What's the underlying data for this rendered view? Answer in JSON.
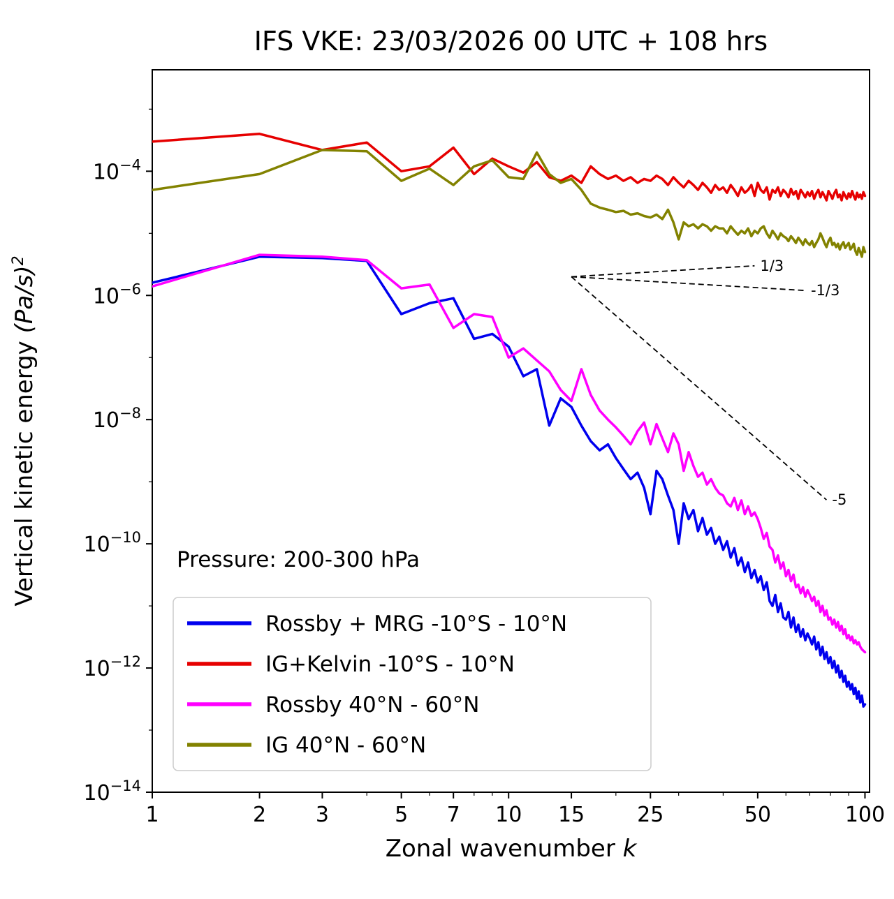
{
  "chart_data": {
    "type": "line",
    "title": "IFS VKE: 23/03/2026 00 UTC + 108 hrs",
    "xlabel": "Zonal wavenumber k",
    "ylabel": "Vertical kinetic energy (Pa/s)²",
    "xlabel_rich": [
      {
        "t": "Zonal wavenumber ",
        "style": "normal"
      },
      {
        "t": "k",
        "style": "italic"
      }
    ],
    "ylabel_rich": [
      {
        "t": "Vertical kinetic energy ",
        "style": "normal"
      },
      {
        "t": "(Pa/s)",
        "style": "italic"
      },
      {
        "t": "2",
        "style": "italic",
        "super": true
      }
    ],
    "xscale": "log",
    "yscale": "log",
    "xlim": [
      1,
      103
    ],
    "ylim": [
      1e-14,
      0.0043
    ],
    "grid": false,
    "legend_position": "lower left",
    "xticks": [
      1,
      2,
      3,
      5,
      7,
      10,
      15,
      25,
      50,
      100
    ],
    "xticks_minor": [
      4,
      6,
      8,
      9,
      20,
      30,
      40,
      60,
      70,
      80,
      90
    ],
    "yticks_exponents": [
      -4,
      -6,
      -8,
      -10,
      -12,
      -14
    ],
    "yticks_minor_exponents": [
      -3,
      -5,
      -7,
      -9,
      -11,
      -13
    ],
    "pressure_label": "Pressure: 200-300 hPa",
    "guides": [
      {
        "label": "1/3",
        "x0": 15,
        "y0": 2e-06,
        "x1": 49,
        "y1": 3e-06
      },
      {
        "label": "-1/3",
        "x0": 15,
        "y0": 2e-06,
        "x1": 68,
        "y1": 1.2e-06
      },
      {
        "label": "-5",
        "x0": 15,
        "y0": 2e-06,
        "x1": 78,
        "y1": 5.1e-10
      }
    ],
    "x": [
      1,
      2,
      3,
      4,
      5,
      6,
      7,
      8,
      9,
      10,
      11,
      12,
      13,
      14,
      15,
      16,
      17,
      18,
      19,
      20,
      21,
      22,
      23,
      24,
      25,
      26,
      27,
      28,
      29,
      30,
      31,
      32,
      33,
      34,
      35,
      36,
      37,
      38,
      39,
      40,
      41,
      42,
      43,
      44,
      45,
      46,
      47,
      48,
      49,
      50,
      51,
      52,
      53,
      54,
      55,
      56,
      57,
      58,
      59,
      60,
      61,
      62,
      63,
      64,
      65,
      66,
      67,
      68,
      69,
      70,
      71,
      72,
      73,
      74,
      75,
      76,
      77,
      78,
      79,
      80,
      81,
      82,
      83,
      84,
      85,
      86,
      87,
      88,
      89,
      90,
      91,
      92,
      93,
      94,
      95,
      96,
      97,
      98,
      99,
      100
    ],
    "series": [
      {
        "name": "Rossby + MRG -10°S - 10°N",
        "color": "#0000ee",
        "values": [
          1.6e-06,
          4.2e-06,
          4e-06,
          3.6e-06,
          5e-07,
          7.5e-07,
          9e-07,
          2e-07,
          2.4e-07,
          1.5e-07,
          5e-08,
          6.5e-08,
          8e-09,
          2.2e-08,
          1.6e-08,
          8e-09,
          4.5e-09,
          3.2e-09,
          4e-09,
          2.4e-09,
          1.6e-09,
          1.1e-09,
          1.4e-09,
          8e-10,
          3e-10,
          1.5e-09,
          1.1e-09,
          6e-10,
          3.5e-10,
          1e-10,
          4.5e-10,
          2.5e-10,
          3.5e-10,
          1.6e-10,
          2.6e-10,
          1.4e-10,
          1.8e-10,
          1e-10,
          1.3e-10,
          8e-11,
          1.1e-10,
          6e-11,
          8.5e-11,
          4.5e-11,
          6e-11,
          3.5e-11,
          5e-11,
          2.8e-11,
          3.8e-11,
          2.4e-11,
          3e-11,
          1.8e-11,
          2.4e-11,
          1.2e-11,
          1e-11,
          1.5e-11,
          8e-12,
          1.1e-11,
          6.5e-12,
          6e-12,
          8e-12,
          4.5e-12,
          6.5e-12,
          3.8e-12,
          5e-12,
          3.2e-12,
          4.2e-12,
          2.8e-12,
          3.6e-12,
          3e-12,
          2.4e-12,
          3.2e-12,
          2e-12,
          2.6e-12,
          1.6e-12,
          2.2e-12,
          1.4e-12,
          1.8e-12,
          1.2e-12,
          1.5e-12,
          1e-12,
          1.3e-12,
          8.5e-13,
          1.1e-12,
          7e-13,
          9e-13,
          6e-13,
          7.5e-13,
          5e-13,
          6e-13,
          4.5e-13,
          5.5e-13,
          3.8e-13,
          4.8e-13,
          3.2e-13,
          4.2e-13,
          2.8e-13,
          3.6e-13,
          2.4e-13,
          2.6e-13
        ]
      },
      {
        "name": "IG+Kelvin -10°S - 10°N",
        "color": "#e60000",
        "values": [
          0.0003,
          0.0004,
          0.00022,
          0.00029,
          0.0001,
          0.00012,
          0.00024,
          9e-05,
          0.00016,
          0.00012,
          9.5e-05,
          0.00014,
          8e-05,
          7e-05,
          8.5e-05,
          6.5e-05,
          0.00012,
          9e-05,
          7.5e-05,
          8.5e-05,
          7e-05,
          8e-05,
          6.5e-05,
          7.5e-05,
          7e-05,
          8.5e-05,
          7.5e-05,
          6e-05,
          8e-05,
          6.5e-05,
          5.5e-05,
          7e-05,
          6e-05,
          5e-05,
          6.5e-05,
          5.5e-05,
          4.5e-05,
          6e-05,
          5e-05,
          5.5e-05,
          4.5e-05,
          6e-05,
          5e-05,
          4e-05,
          5.5e-05,
          4.5e-05,
          5e-05,
          6e-05,
          4e-05,
          6.5e-05,
          5e-05,
          4.5e-05,
          5.5e-05,
          3.5e-05,
          5e-05,
          4.5e-05,
          5.5e-05,
          4e-05,
          5e-05,
          4.5e-05,
          3.8e-05,
          5.2e-05,
          4.2e-05,
          4.8e-05,
          3.6e-05,
          5e-05,
          4.4e-05,
          3.8e-05,
          4.6e-05,
          4e-05,
          4.8e-05,
          3.6e-05,
          4.4e-05,
          5e-05,
          3.8e-05,
          4.6e-05,
          4e-05,
          3.4e-05,
          4.8e-05,
          4.2e-05,
          3.6e-05,
          4.4e-05,
          5e-05,
          3.8e-05,
          4.2e-05,
          3.4e-05,
          4.6e-05,
          4e-05,
          3.6e-05,
          4.4e-05,
          3.8e-05,
          4.8e-05,
          4e-05,
          3.5e-05,
          4.5e-05,
          3.8e-05,
          4.2e-05,
          3.6e-05,
          4.6e-05,
          4e-05
        ]
      },
      {
        "name": "Rossby 40°N - 60°N",
        "color": "#ff00ff",
        "values": [
          1.4e-06,
          4.5e-06,
          4.2e-06,
          3.7e-06,
          1.3e-06,
          1.5e-06,
          3e-07,
          5e-07,
          4.5e-07,
          1e-07,
          1.4e-07,
          9e-08,
          6e-08,
          3e-08,
          2e-08,
          6.5e-08,
          2.5e-08,
          1.4e-08,
          1e-08,
          7.5e-09,
          5.5e-09,
          4e-09,
          6.5e-09,
          9e-09,
          4e-09,
          8.5e-09,
          5e-09,
          3e-09,
          6e-09,
          4e-09,
          1.5e-09,
          3e-09,
          1.8e-09,
          1.2e-09,
          1.4e-09,
          9e-10,
          1.1e-09,
          8e-10,
          6.5e-10,
          6e-10,
          4.5e-10,
          4e-10,
          5.5e-10,
          3.5e-10,
          5e-10,
          3e-10,
          4e-10,
          2.8e-10,
          3.2e-10,
          2.5e-10,
          1.8e-10,
          1.2e-10,
          1.5e-10,
          9e-11,
          8e-11,
          5e-11,
          6.5e-11,
          4e-11,
          5e-11,
          3e-11,
          3.8e-11,
          2.5e-11,
          3.2e-11,
          2e-11,
          2.2e-11,
          1.6e-11,
          2e-11,
          1.4e-11,
          1.8e-11,
          1.5e-11,
          1.2e-11,
          1.4e-11,
          1e-11,
          1.2e-11,
          8e-12,
          1e-11,
          7e-12,
          8.5e-12,
          6e-12,
          6.5e-12,
          5e-12,
          6e-12,
          4.5e-12,
          5.5e-12,
          4e-12,
          4.8e-12,
          3.5e-12,
          4.2e-12,
          3e-12,
          3.4e-12,
          2.8e-12,
          3.2e-12,
          2.5e-12,
          2.8e-12,
          2.4e-12,
          2.6e-12,
          2.2e-12,
          2e-12,
          1.9e-12,
          1.8e-12
        ]
      },
      {
        "name": "IG 40°N - 60°N",
        "color": "#828200",
        "values": [
          5e-05,
          9e-05,
          0.00022,
          0.00021,
          7e-05,
          0.00011,
          6e-05,
          0.00012,
          0.00015,
          8e-05,
          7.5e-05,
          0.0002,
          9e-05,
          6.5e-05,
          7.5e-05,
          5e-05,
          3e-05,
          2.6e-05,
          2.4e-05,
          2.2e-05,
          2.3e-05,
          2e-05,
          2.1e-05,
          1.9e-05,
          1.8e-05,
          2e-05,
          1.7e-05,
          2.4e-05,
          1.5e-05,
          8e-06,
          1.5e-05,
          1.3e-05,
          1.4e-05,
          1.2e-05,
          1.4e-05,
          1.3e-05,
          1.1e-05,
          1.3e-05,
          1.2e-05,
          1.2e-05,
          1e-05,
          1.3e-05,
          1.1e-05,
          9.5e-06,
          1.1e-05,
          1e-05,
          1.2e-05,
          9e-06,
          1.1e-05,
          1e-05,
          1.2e-05,
          1.3e-05,
          1e-05,
          8.5e-06,
          1.1e-05,
          9.5e-06,
          8e-06,
          1e-05,
          9e-06,
          8.5e-06,
          7.5e-06,
          9e-06,
          8e-06,
          7e-06,
          8.5e-06,
          7.5e-06,
          6.5e-06,
          8e-06,
          7e-06,
          6.5e-06,
          7.5e-06,
          6e-06,
          7e-06,
          8e-06,
          1e-05,
          8.5e-06,
          7e-06,
          6e-06,
          7.5e-06,
          8.5e-06,
          6.5e-06,
          7e-06,
          6e-06,
          6.8e-06,
          5.5e-06,
          6.5e-06,
          7.2e-06,
          5.8e-06,
          6.4e-06,
          7e-06,
          5.5e-06,
          6e-06,
          6.8e-06,
          5.2e-06,
          4.5e-06,
          5.8e-06,
          5e-06,
          4.2e-06,
          6e-06,
          5e-06
        ]
      }
    ],
    "legend": {
      "entries": [
        "Rossby + MRG -10°S - 10°N",
        "IG+Kelvin -10°S - 10°N",
        "Rossby 40°N - 60°N",
        "IG 40°N - 60°N"
      ]
    }
  }
}
